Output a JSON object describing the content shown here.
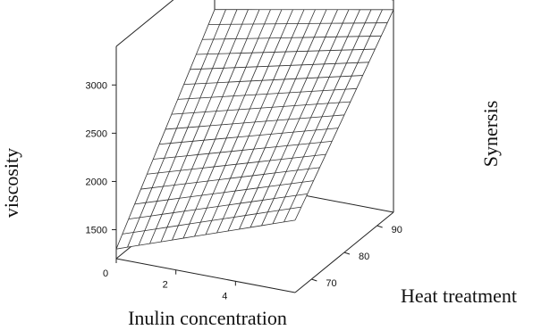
{
  "chart_data": {
    "type": "surface",
    "xlabel": "Inulin concentration",
    "ylabel": "Heat treatment",
    "zlabel": "viscosity",
    "side_label": "Synersis",
    "x_ticks": [
      "0",
      "2",
      "4"
    ],
    "y_ticks": [
      "70",
      "80",
      "90"
    ],
    "z_ticks": [
      "1500",
      "2000",
      "2500",
      "3000"
    ],
    "xlim": [
      0,
      6
    ],
    "ylim": [
      65,
      95
    ],
    "zlim": [
      1200,
      3400
    ],
    "mesh_x_count": 16,
    "mesh_y_count": 16,
    "corner_values": {
      "x_min_y_min": 1300,
      "x_max_y_min": 1950,
      "x_min_y_max": 2950,
      "x_max_y_max": 3300
    }
  }
}
